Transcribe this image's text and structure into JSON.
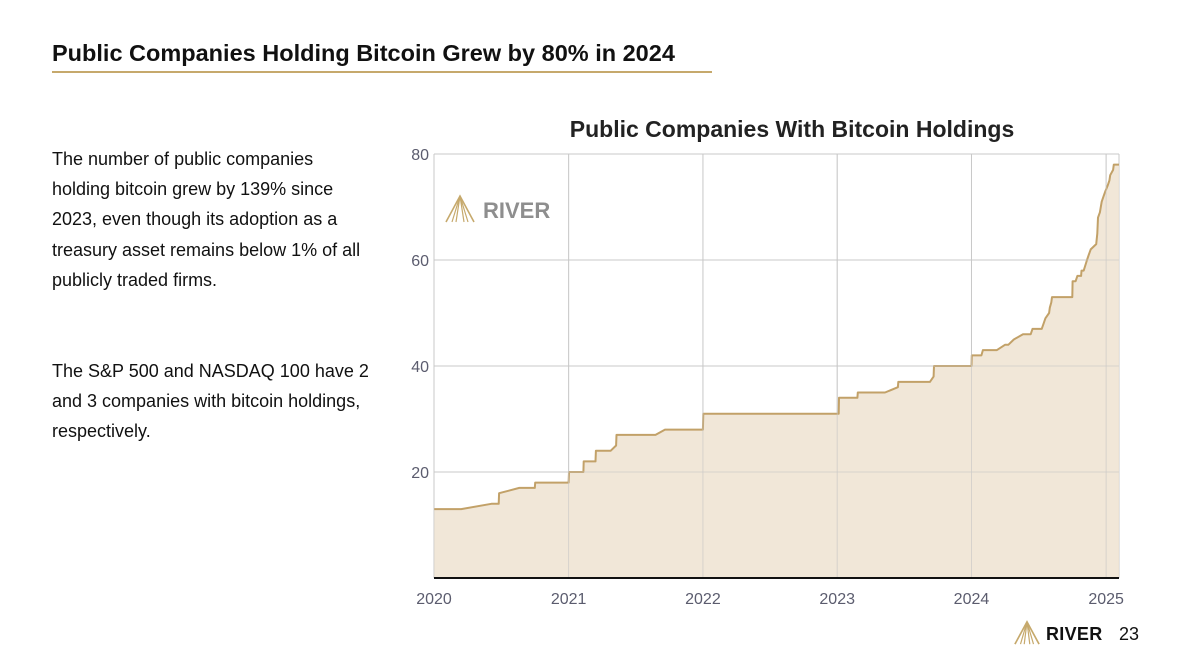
{
  "page": {
    "title": "Public Companies Holding Bitcoin Grew by 80% in 2024",
    "paragraphs": [
      "The number of public companies holding bitcoin grew by 139% since 2023, even though its adoption as a treasury asset remains below 1% of all publicly traded firms.",
      "The S&P 500 and NASDAQ 100 have 2 and 3 companies with bitcoin holdings, respectively."
    ],
    "footer": {
      "brand": "RIVER",
      "page_number": "23"
    },
    "watermark": "RIVER",
    "icons": [
      "river-logo-icon"
    ]
  },
  "colors": {
    "accent": "#c6a96c",
    "line": "#c2a168",
    "fill": "#efe3d1",
    "grid": "#c9c9c9",
    "axis_text": "#5b5c6e",
    "watermark": "#8e8e8e"
  },
  "chart_data": {
    "type": "area",
    "step": true,
    "title": "Public Companies With Bitcoin Holdings",
    "xlabel": "",
    "ylabel": "",
    "x_ticks": [
      "2020",
      "2021",
      "2022",
      "2023",
      "2024",
      "2025"
    ],
    "y_ticks": [
      20,
      40,
      60,
      80
    ],
    "xlim": [
      "2020-01-01",
      "2025-02-05"
    ],
    "ylim": [
      0,
      80
    ],
    "grid": true,
    "legend": "none",
    "series": [
      {
        "x": [
          "2020-01-01",
          "2020-03-15",
          "2020-06-05",
          "2020-06-25",
          "2020-06-26",
          "2020-08-20",
          "2020-10-01",
          "2020-10-02",
          "2021-01-01",
          "2021-01-02",
          "2021-02-10",
          "2021-02-11",
          "2021-03-15",
          "2021-03-16",
          "2021-04-25",
          "2021-05-10",
          "2021-05-11",
          "2021-08-25",
          "2021-09-20",
          "2021-09-21",
          "2022-01-01",
          "2022-01-02",
          "2023-01-01",
          "2023-01-05",
          "2023-01-06",
          "2023-02-25",
          "2023-02-26",
          "2023-05-10",
          "2023-05-11",
          "2023-06-15",
          "2023-06-16",
          "2023-09-10",
          "2023-09-20",
          "2023-09-21",
          "2024-01-01",
          "2024-01-02",
          "2024-01-28",
          "2024-02-01",
          "2024-03-05",
          "2024-03-10",
          "2024-04-01",
          "2024-04-10",
          "2024-04-25",
          "2024-05-20",
          "2024-05-25",
          "2024-06-10",
          "2024-06-15",
          "2024-07-10",
          "2024-07-15",
          "2024-07-20",
          "2024-07-30",
          "2024-08-01",
          "2024-08-05",
          "2024-08-07",
          "2024-10-01",
          "2024-10-02",
          "2024-10-10",
          "2024-10-15",
          "2024-10-25",
          "2024-10-26",
          "2024-11-01",
          "2024-11-10",
          "2024-11-15",
          "2024-11-20",
          "2024-12-05",
          "2024-12-08",
          "2024-12-10",
          "2024-12-15",
          "2024-12-20",
          "2024-12-25",
          "2024-12-30",
          "2025-01-05",
          "2025-01-10",
          "2025-01-12",
          "2025-01-20",
          "2025-01-22",
          "2025-02-05"
        ],
        "y": [
          13,
          13,
          14,
          14,
          16,
          17,
          17,
          18,
          18,
          20,
          20,
          22,
          22,
          24,
          24,
          25,
          27,
          27,
          28,
          28,
          28,
          31,
          31,
          31,
          34,
          34,
          35,
          35,
          35,
          36,
          37,
          37,
          38,
          40,
          40,
          42,
          42,
          43,
          43,
          43,
          44,
          44,
          45,
          46,
          46,
          46,
          47,
          47,
          48,
          49,
          50,
          51,
          52,
          53,
          53,
          56,
          56,
          57,
          57,
          58,
          58,
          60,
          61,
          62,
          63,
          65,
          68,
          69,
          71,
          72,
          73,
          74,
          75,
          76,
          77,
          78,
          78
        ]
      }
    ]
  }
}
